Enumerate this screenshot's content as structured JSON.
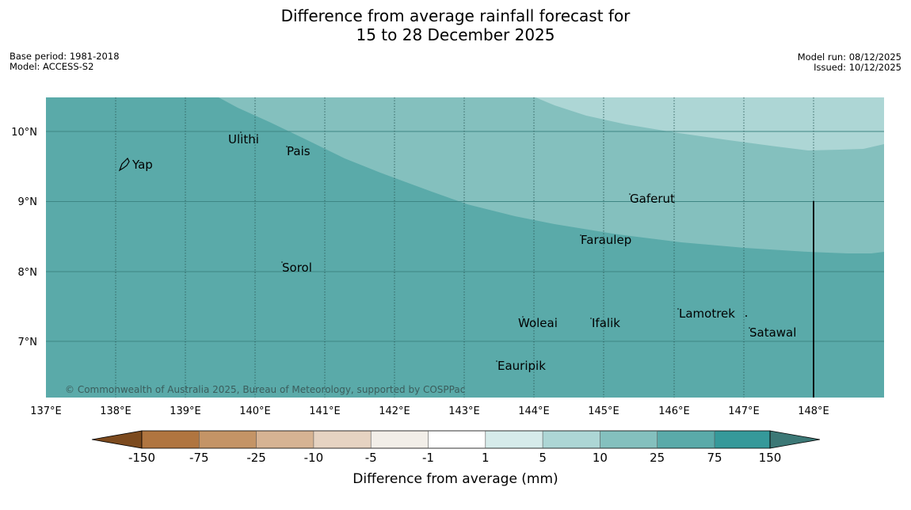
{
  "title": {
    "line1": "Difference from average rainfall forecast for",
    "line2": "15 to 28 December 2025"
  },
  "meta": {
    "base_period": "Base period: 1981-2018",
    "model": "Model: ACCESS-S2",
    "model_run": "Model run: 08/12/2025",
    "issued": "Issued: 10/12/2025"
  },
  "map": {
    "x_ticks": [
      "137°E",
      "138°E",
      "139°E",
      "140°E",
      "141°E",
      "142°E",
      "143°E",
      "144°E",
      "145°E",
      "146°E",
      "147°E",
      "148°E"
    ],
    "y_ticks": [
      "10°N",
      "9°N",
      "8°N",
      "7°N"
    ],
    "places": {
      "yap": "Yap",
      "ulithi": "Ulithi",
      "pais": "Pais",
      "gaferut": "Gaferut",
      "faraulep": "Faraulep",
      "sorol": "Sorol",
      "lamotrek": "Lamotrek",
      "woleai": "Woleai",
      "ifalik": "Ifalik",
      "satawal": "Satawal",
      "eauripik": "Eauripik"
    },
    "copyright": "© Commonwealth of Australia 2025, Bureau of Meteorology, supported by COSPPac",
    "colors": {
      "band_75": "#5aaaa9",
      "band_25": "#84c0be",
      "band_10": "#add6d5"
    }
  },
  "colorbar": {
    "ticks": [
      "-150",
      "-75",
      "-25",
      "-10",
      "-5",
      "-1",
      "1",
      "5",
      "10",
      "25",
      "75",
      "150"
    ],
    "label": "Difference from average (mm)",
    "colors": [
      "#7c4a1e",
      "#b07540",
      "#c49466",
      "#d6b393",
      "#e6d3c2",
      "#f2eee8",
      "#ffffff",
      "#d6ebea",
      "#add6d5",
      "#84c0be",
      "#5aaaa9",
      "#35999a",
      "#3c7876"
    ]
  }
}
